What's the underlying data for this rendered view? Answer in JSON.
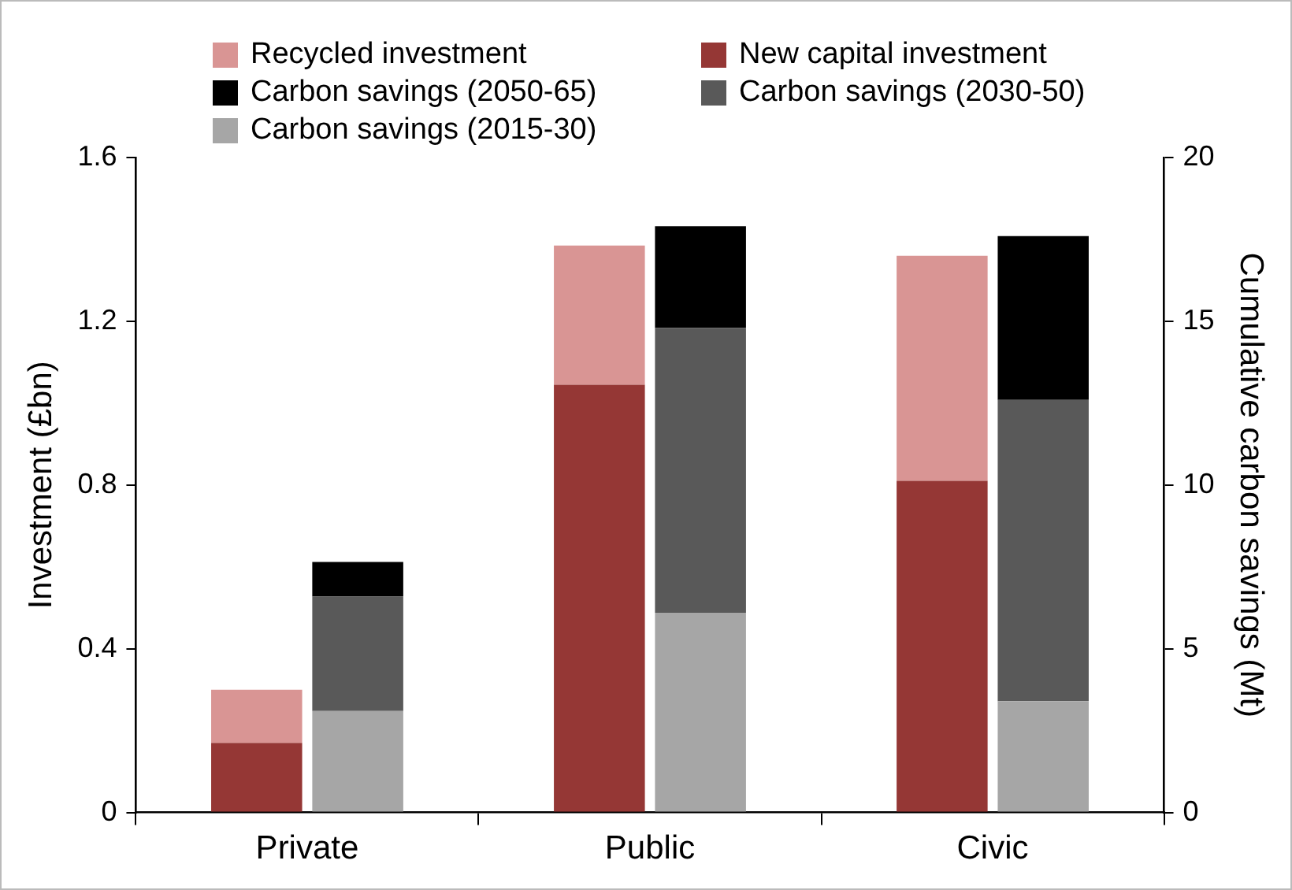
{
  "chart_data": {
    "type": "bar",
    "stacked": true,
    "categories": [
      "Private",
      "Public",
      "Civic"
    ],
    "ylabel": "Investment (£bn)",
    "y2label": "Cumulative carbon savings (Mt)",
    "ylim": [
      0,
      1.6
    ],
    "yticks": [
      0,
      0.4,
      0.8,
      1.2,
      1.6
    ],
    "y2lim": [
      0,
      20
    ],
    "y2ticks": [
      0,
      5,
      10,
      15,
      20
    ],
    "grid": false,
    "legend": "top",
    "series": [
      {
        "name": "New capital investment",
        "color": "#953735",
        "values": [
          0.17,
          1.045,
          0.81
        ]
      },
      {
        "name": "Recycled investment",
        "color": "#d99594",
        "values": [
          0.13,
          0.34,
          0.55
        ]
      },
      {
        "name": "Carbon savings (2015-30)",
        "color": "#a6a6a6",
        "axis": "y2",
        "values": [
          3.1,
          6.1,
          3.4
        ]
      },
      {
        "name": "Carbon savings (2030-50)",
        "color": "#595959",
        "axis": "y2",
        "values": [
          3.5,
          8.7,
          9.2
        ]
      },
      {
        "name": "Carbon savings (2050-65)",
        "color": "#000000",
        "axis": "y2",
        "values": [
          1.05,
          3.1,
          5.0
        ]
      }
    ]
  }
}
